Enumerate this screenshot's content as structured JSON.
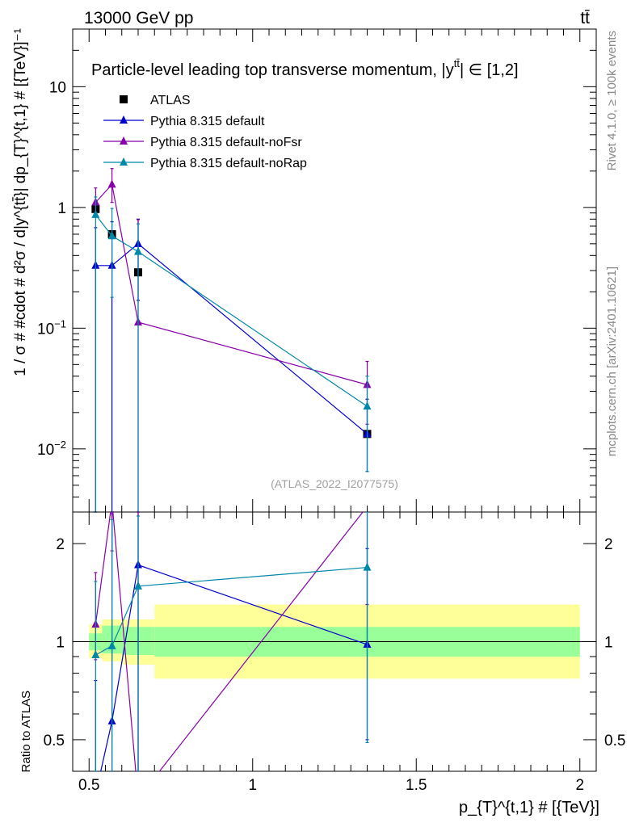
{
  "header": {
    "energy_label": "13000 GeV pp",
    "process_label": "tt̄",
    "title": "Particle-level leading top transverse momentum, |y",
    "title_sup": "tt̄",
    "title_tail": "| ∈ [1,2]",
    "watermark": "(ATLAS_2022_I2077575)",
    "side_label_top": "Rivet 4.1.0, ≥ 100k events",
    "side_label_bottom": "mcplots.cern.ch [arXiv:2401.10621]"
  },
  "colors": {
    "atlas": "#000000",
    "default": "#0000cc",
    "noFsr": "#8800aa",
    "noRap": "#0088aa",
    "band_inner": "#99ff99",
    "band_outer": "#ffff99"
  },
  "chart_data": [
    {
      "type": "scatter",
      "panel": "main",
      "ylabel": "1 / σ # #cdot # d²σ / d|y^{tt̄}| dp_{T}^{t,1} # [{TeV}]⁻¹",
      "yscale": "log",
      "ylim": [
        0.003,
        30
      ],
      "xlim": [
        0.45,
        2.05
      ],
      "yticks": [
        {
          "value": 10,
          "base": "10",
          "exp": ""
        },
        {
          "value": 1,
          "base": "1",
          "exp": ""
        },
        {
          "value": 0.1,
          "base": "10",
          "exp": "−1"
        },
        {
          "value": 0.01,
          "base": "10",
          "exp": "−2"
        }
      ],
      "series": [
        {
          "name": "ATLAS",
          "key": "atlas",
          "marker": "square",
          "x": [
            0.52,
            0.57,
            0.65,
            1.35
          ],
          "y": [
            0.97,
            0.6,
            0.29,
            0.0133
          ],
          "yerr_lo": [
            0,
            0,
            0,
            0
          ],
          "yerr_hi": [
            0,
            0,
            0,
            0
          ]
        },
        {
          "name": "Pythia 8.315 default",
          "key": "default",
          "marker": "triangle",
          "x": [
            0.52,
            0.57,
            0.65,
            1.35
          ],
          "y": [
            0.33,
            0.33,
            0.5,
            0.0133
          ],
          "yerr_lo": [
            0.33,
            0.33,
            0.33,
            0.0068
          ],
          "yerr_hi": [
            0.35,
            0.43,
            0.3,
            0.0125
          ]
        },
        {
          "name": "Pythia 8.315 default-noFsr",
          "key": "noFsr",
          "marker": "triangle",
          "x": [
            0.52,
            0.57,
            0.65,
            1.35
          ],
          "y": [
            1.1,
            1.55,
            0.112,
            0.034
          ],
          "yerr_lo": [
            0.25,
            0.45,
            0.112,
            0.018
          ],
          "yerr_hi": [
            0.35,
            0.55,
            0.68,
            0.019
          ]
        },
        {
          "name": "Pythia 8.315 default-noRap",
          "key": "noRap",
          "marker": "triangle",
          "x": [
            0.52,
            0.57,
            0.65,
            1.35
          ],
          "y": [
            0.87,
            0.58,
            0.43,
            0.0225
          ],
          "yerr_lo": [
            0.87,
            0.4,
            0.43,
            0.016
          ],
          "yerr_hi": [
            0.35,
            0.4,
            0.3,
            0.0175
          ]
        }
      ]
    },
    {
      "type": "line",
      "panel": "ratio",
      "ylabel": "Ratio to ATLAS",
      "xlabel": "p_{T}^{t,1} # [{TeV}]",
      "yscale": "log",
      "ylim": [
        0.4,
        2.5
      ],
      "xlim": [
        0.45,
        2.05
      ],
      "yticks": [
        {
          "value": 2,
          "label": "2"
        },
        {
          "value": 1,
          "label": "1"
        },
        {
          "value": 0.5,
          "label": "0.5"
        }
      ],
      "xticks": [
        {
          "value": 0.5,
          "label": "0.5"
        },
        {
          "value": 1,
          "label": "1"
        },
        {
          "value": 1.5,
          "label": "1.5"
        },
        {
          "value": 2,
          "label": "2"
        }
      ],
      "bands": [
        {
          "x0": 0.5,
          "x1": 0.54,
          "inner": [
            0.94,
            1.06
          ],
          "outer": [
            0.89,
            1.13
          ]
        },
        {
          "x0": 0.54,
          "x1": 0.6,
          "inner": [
            0.92,
            1.12
          ],
          "outer": [
            0.87,
            1.17
          ]
        },
        {
          "x0": 0.6,
          "x1": 0.7,
          "inner": [
            0.91,
            1.11
          ],
          "outer": [
            0.85,
            1.17
          ]
        },
        {
          "x0": 0.7,
          "x1": 2.0,
          "inner": [
            0.9,
            1.11
          ],
          "outer": [
            0.77,
            1.3
          ]
        }
      ],
      "series": [
        {
          "name": "Pythia 8.315 default",
          "key": "default",
          "x": [
            0.52,
            0.57,
            0.65,
            1.35
          ],
          "y": [
            0.34,
            0.57,
            1.72,
            0.98
          ],
          "yerr_lo": [
            0.34,
            0.57,
            1.72,
            0.48
          ],
          "yerr_hi": [
            0.42,
            1.9,
            1.2,
            0.95
          ]
        },
        {
          "name": "Pythia 8.315 default-noFsr",
          "key": "noFsr",
          "x": [
            0.52,
            0.57,
            0.65,
            1.35
          ],
          "y": [
            1.13,
            2.7,
            0.33,
            2.6
          ],
          "yerr_lo": [
            0.25,
            0.8,
            0.33,
            1.3
          ],
          "yerr_hi": [
            0.5,
            1.0,
            2.2,
            1.5
          ]
        },
        {
          "name": "Pythia 8.315 default-noRap",
          "key": "noRap",
          "x": [
            0.52,
            0.57,
            0.65,
            1.35
          ],
          "y": [
            0.91,
            0.97,
            1.48,
            1.69
          ],
          "yerr_lo": [
            0.91,
            0.67,
            1.48,
            1.2
          ],
          "yerr_hi": [
            0.62,
            1.4,
            0.95,
            1.4
          ]
        }
      ]
    }
  ]
}
